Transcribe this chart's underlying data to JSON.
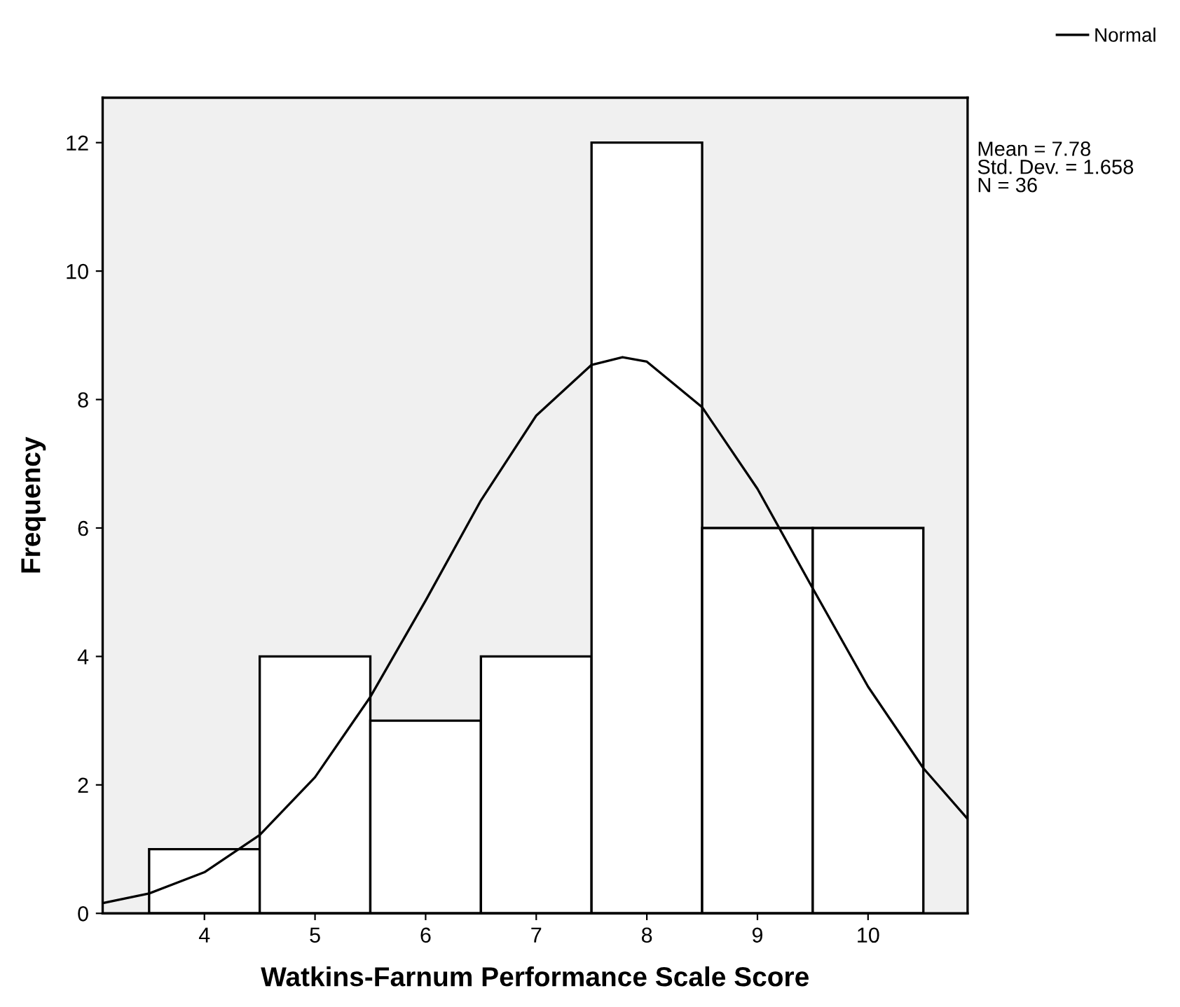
{
  "chart_data": {
    "type": "histogram",
    "xlabel": "Watkins-Farnum Performance Scale Score",
    "ylabel": "Frequency",
    "bins": [
      3.5,
      4.5,
      5.5,
      6.5,
      7.5,
      8.5,
      9.5,
      10.5
    ],
    "values": [
      1,
      4,
      3,
      4,
      12,
      6,
      6
    ],
    "color": "#ffffff",
    "series": [
      {
        "name": "Normal",
        "type": "line",
        "color": "#000000",
        "x": [
          3.08,
          3.5,
          4.0,
          4.5,
          5.0,
          5.5,
          6.0,
          6.5,
          7.0,
          7.5,
          7.78,
          8.0,
          8.5,
          9.0,
          9.5,
          10.0,
          10.5,
          10.9
        ],
        "values": [
          0.16,
          0.31,
          0.64,
          1.22,
          2.12,
          3.37,
          4.87,
          6.43,
          7.75,
          8.54,
          8.66,
          8.59,
          7.88,
          6.61,
          5.06,
          3.53,
          2.26,
          1.47
        ]
      }
    ],
    "xlim": [
      3.08,
      10.9
    ],
    "xticks": [
      4,
      5,
      6,
      7,
      8,
      9,
      10
    ],
    "ylim": [
      0,
      12.7
    ],
    "yticks": [
      0,
      2,
      4,
      6,
      8,
      10,
      12
    ],
    "grid": false,
    "legend": "top right",
    "annotations": [
      "Mean = 7.78",
      "Std. Dev. = 1.658",
      "N = 36"
    ]
  }
}
